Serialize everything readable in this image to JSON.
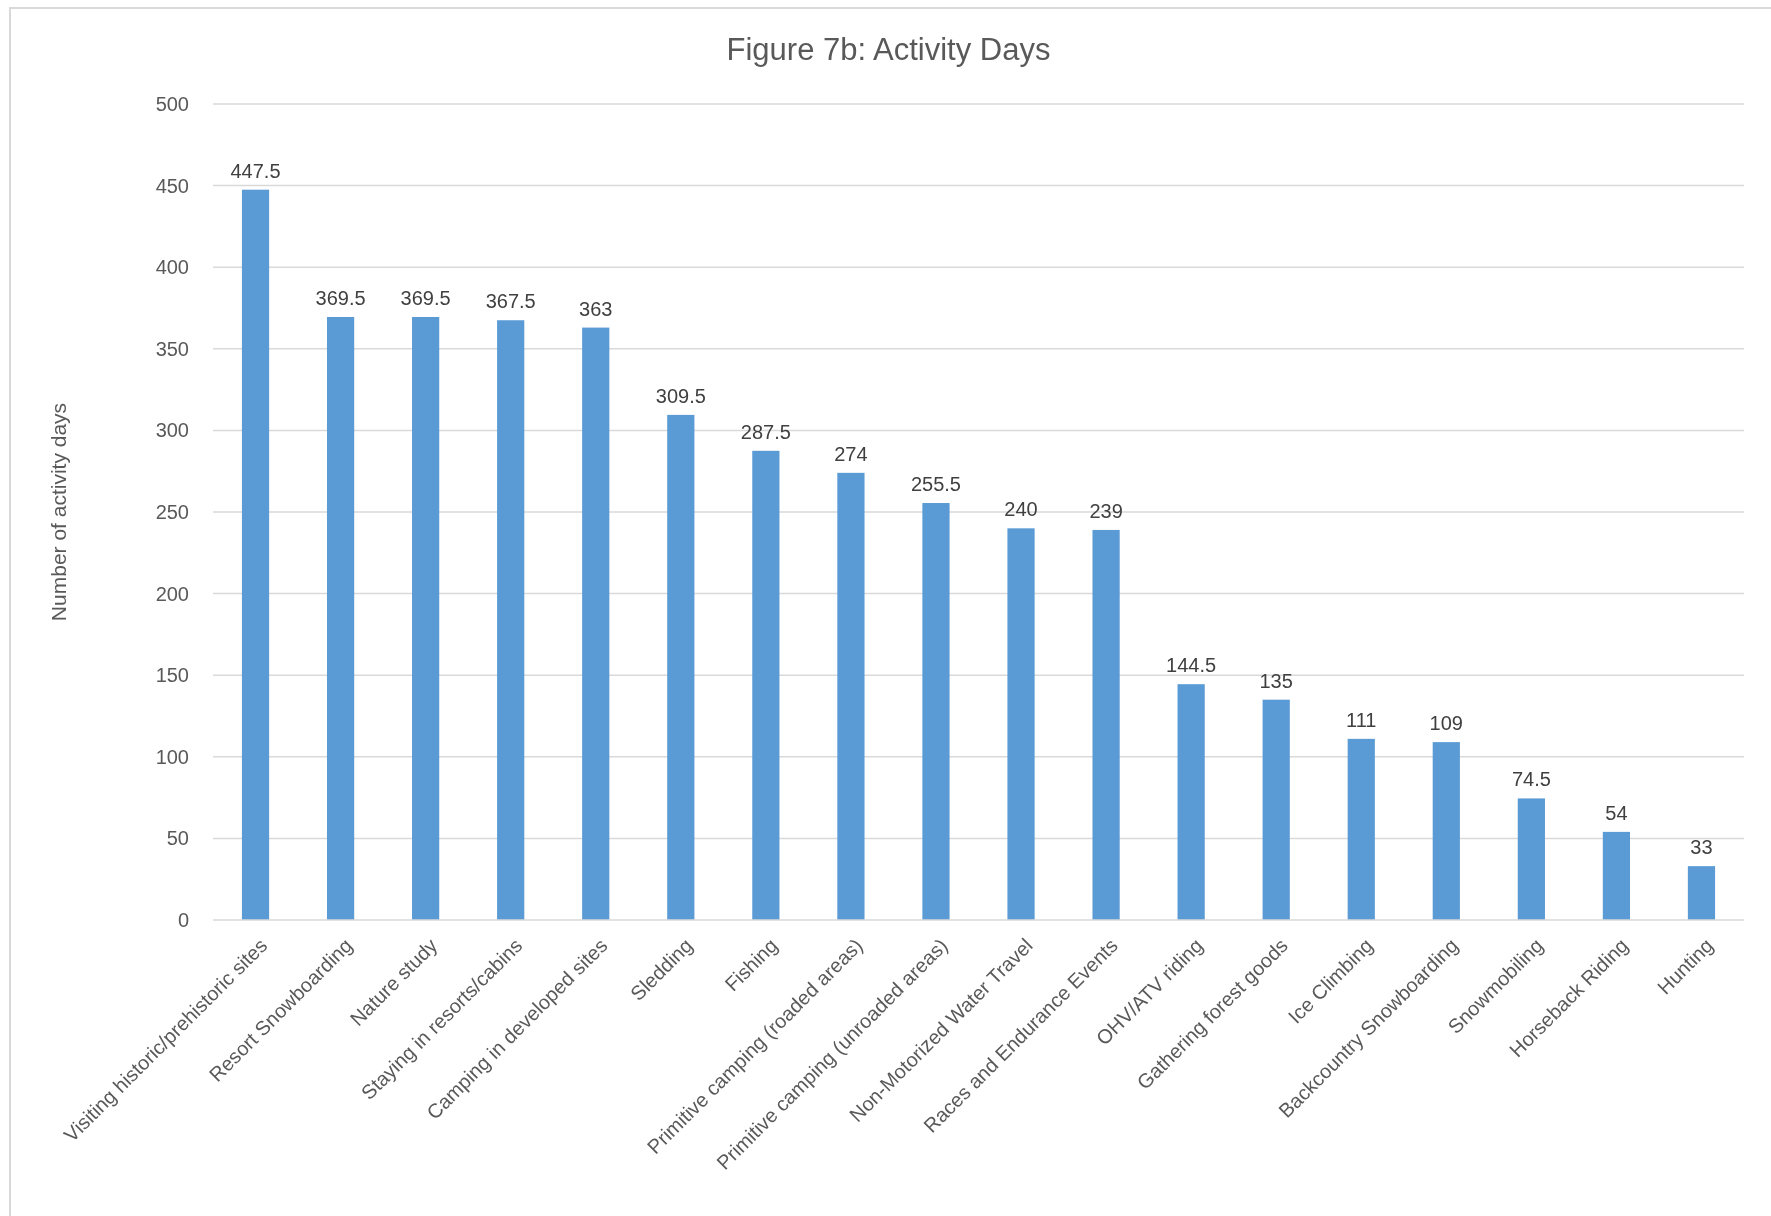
{
  "chart_data": {
    "type": "bar",
    "title": "Figure 7b: Activity Days",
    "ylabel": "Number of activity days",
    "categories": [
      "Visiting historic/prehistoric sites",
      "Resort Snowboarding",
      "Nature study",
      "Staying in resorts/cabins",
      "Camping in developed sites",
      "Sledding",
      "Fishing",
      "Primitive camping (roaded areas)",
      "Primitive camping (unroaded areas)",
      "Non-Motorized Water Travel",
      "Races and Endurance Events",
      "OHV/ATV riding",
      "Gathering forest goods",
      "Ice Climbing",
      "Backcountry Snowboarding",
      "Snowmobiling",
      "Horseback Riding",
      "Hunting"
    ],
    "values": [
      447.5,
      369.5,
      369.5,
      367.5,
      363,
      309.5,
      287.5,
      274,
      255.5,
      240,
      239,
      144.5,
      135,
      111,
      109,
      74.5,
      54,
      33
    ],
    "color": "#5b9bd5",
    "data_labels": true,
    "ylim": [
      0,
      500
    ],
    "yticks": [
      0,
      50,
      100,
      150,
      200,
      250,
      300,
      350,
      400,
      450,
      500
    ],
    "grid": "y"
  }
}
